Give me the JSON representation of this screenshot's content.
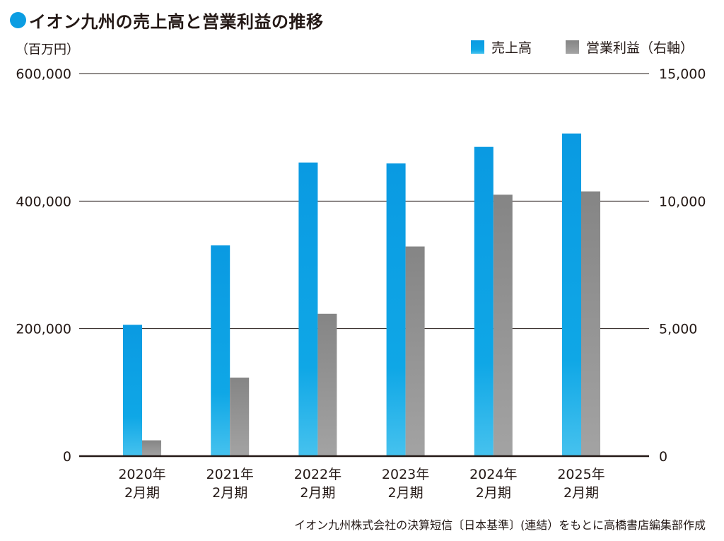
{
  "header": {
    "title": "イオン九州の売上高と営業利益の推移",
    "title_dot_color": "#0b9de2"
  },
  "source_note": "イオン九州株式会社の決算短信〔日本基準〕(連結）をもとに高橋書店編集部作成",
  "chart_data": {
    "type": "bar",
    "title": "イオン九州の売上高と営業利益の推移",
    "left_unit": "（百万円）",
    "categories": [
      [
        "2020年",
        "2月期"
      ],
      [
        "2021年",
        "2月期"
      ],
      [
        "2022年",
        "2月期"
      ],
      [
        "2023年",
        "2月期"
      ],
      [
        "2024年",
        "2月期"
      ],
      [
        "2025年",
        "2月期"
      ]
    ],
    "series": [
      {
        "name": "売上高",
        "axis": "left",
        "values": [
          206000,
          330500,
          460500,
          459000,
          485000,
          506000
        ],
        "color_top": "#0a9ae2",
        "color_bottom": "#46c2ee"
      },
      {
        "name": "営業利益（右軸）",
        "axis": "right",
        "values": [
          620,
          3080,
          5580,
          8220,
          10250,
          10380
        ],
        "color_top": "#858585",
        "color_bottom": "#a3a3a3"
      }
    ],
    "left_axis": {
      "range": [
        0,
        600000
      ],
      "ticks": [
        0,
        200000,
        400000,
        600000
      ],
      "tick_labels": [
        "0",
        "200,000",
        "400,000",
        "600,000"
      ]
    },
    "right_axis": {
      "range": [
        0,
        15000
      ],
      "ticks": [
        0,
        5000,
        10000,
        15000
      ],
      "tick_labels": [
        "0",
        "5,000",
        "10,000",
        "15,000"
      ]
    },
    "grid": true,
    "legend_position": "top-right"
  }
}
